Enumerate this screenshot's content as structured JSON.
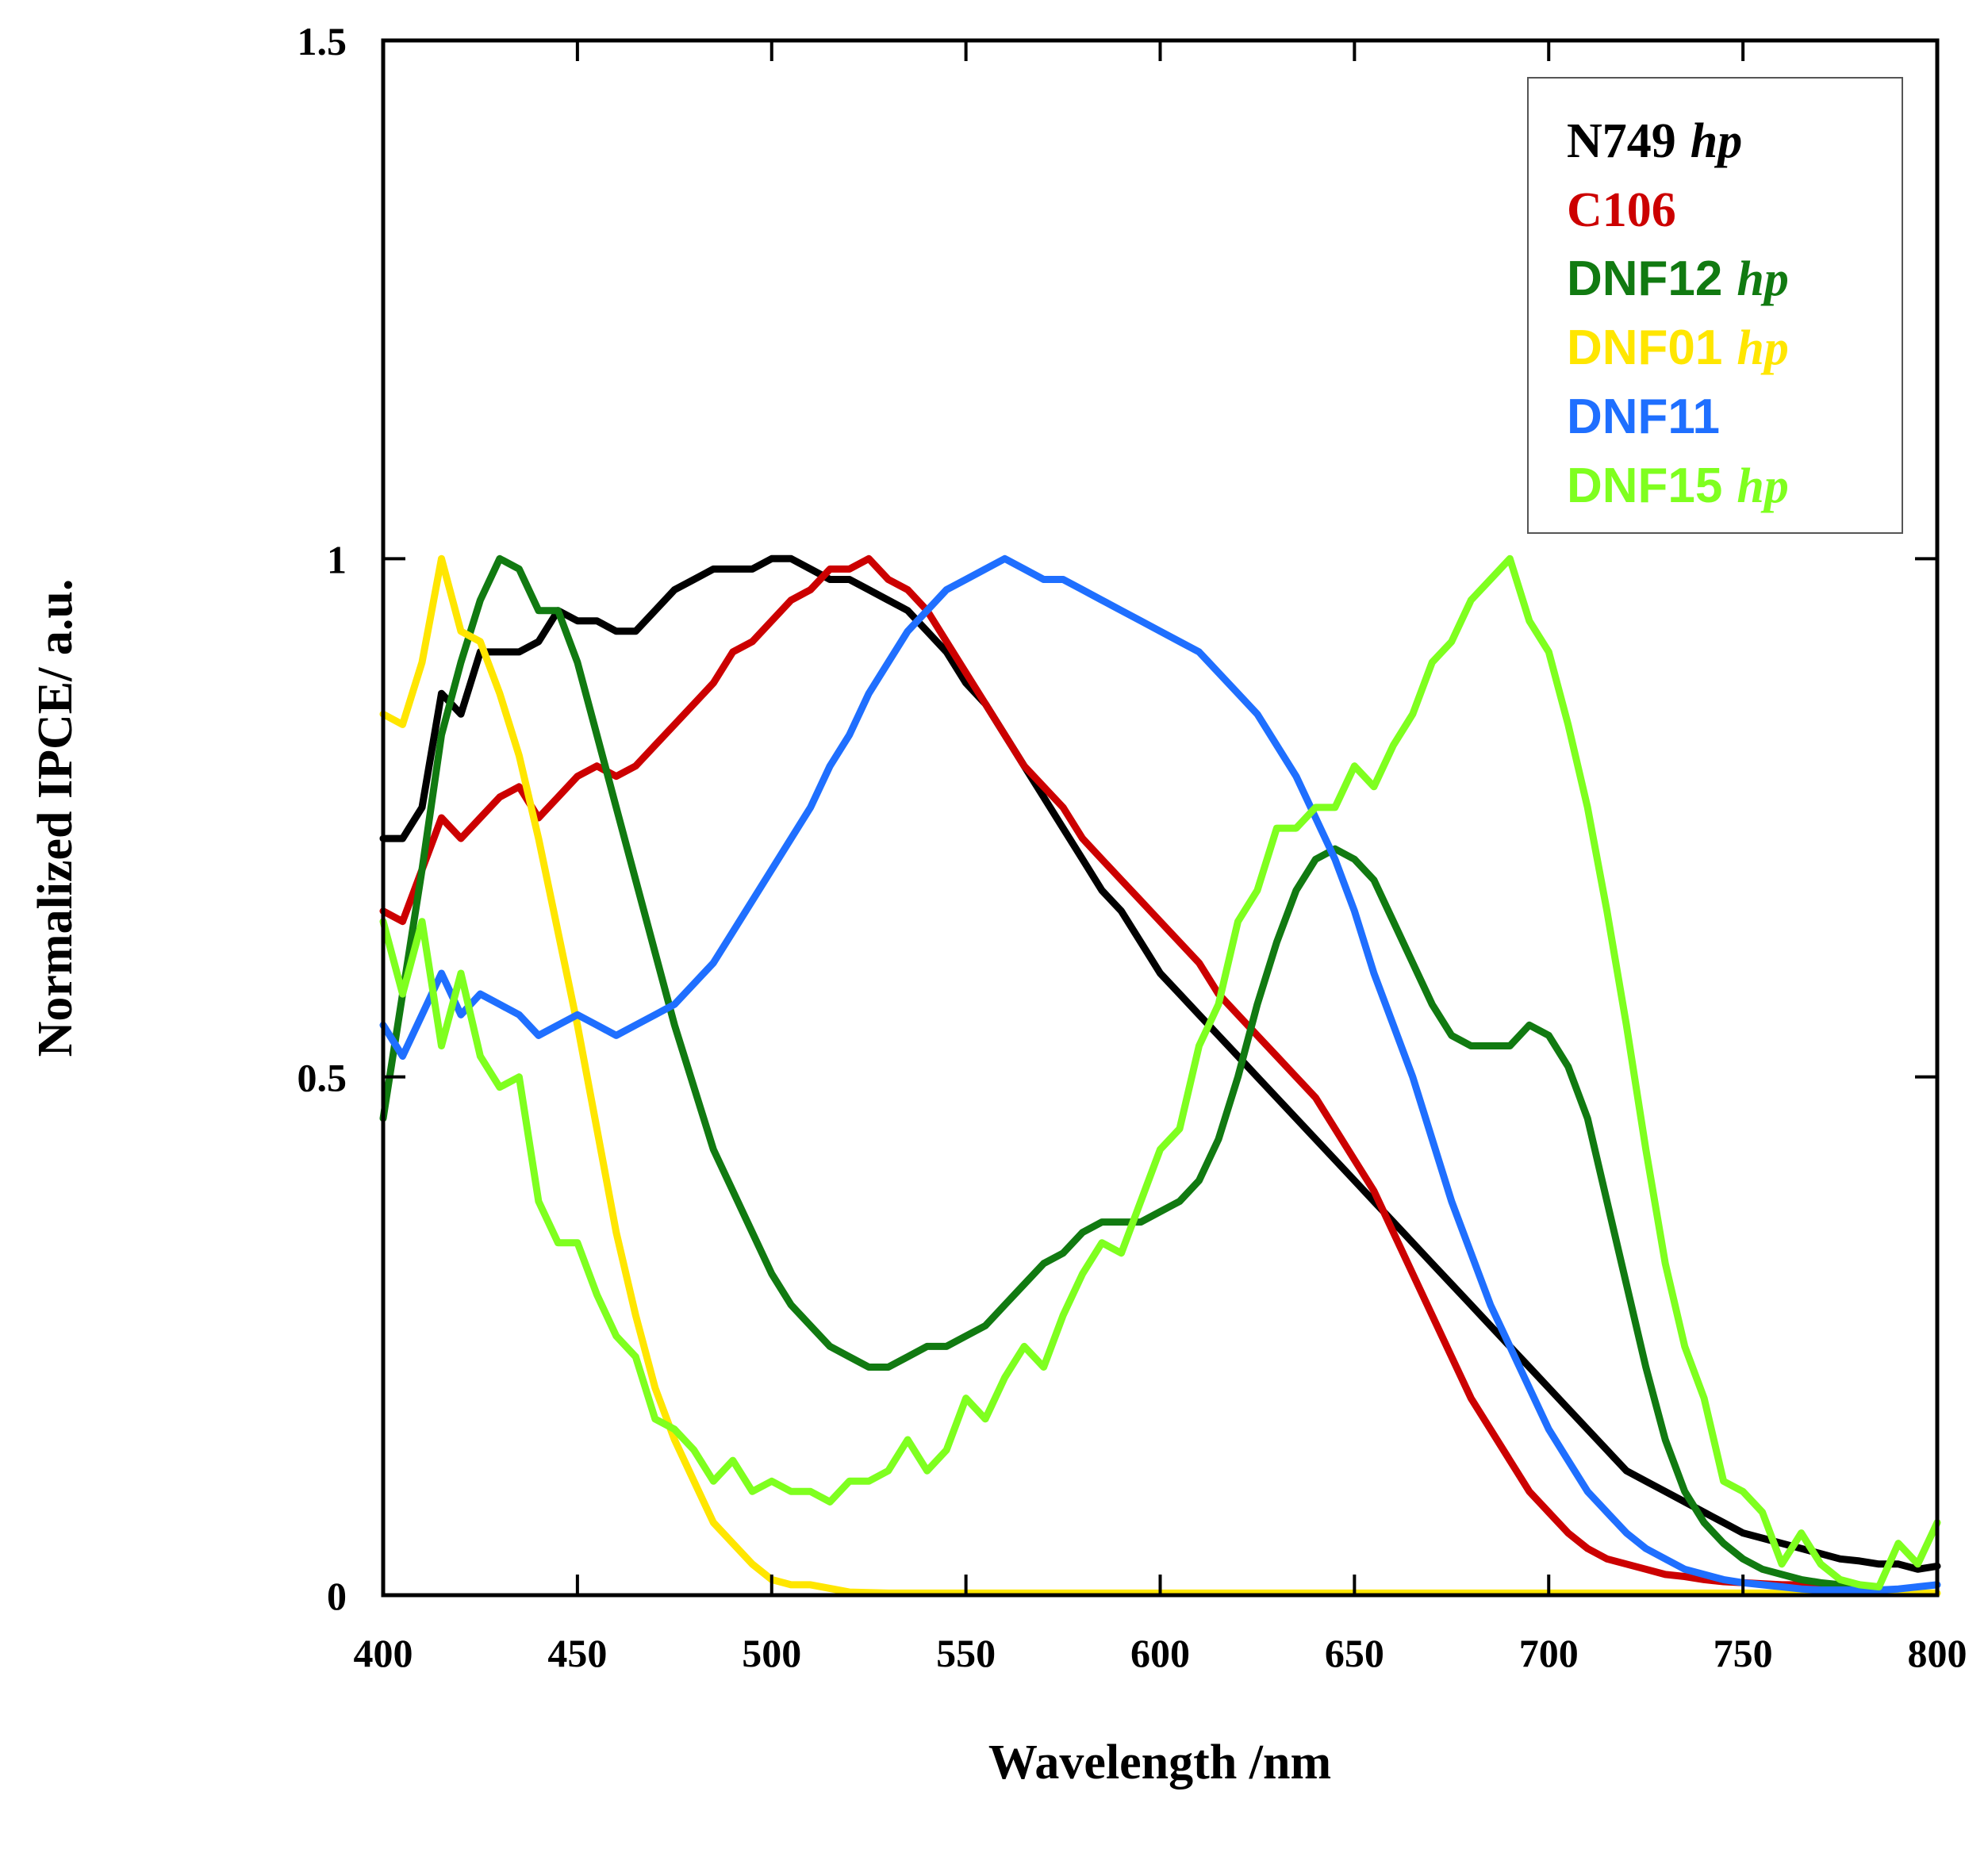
{
  "chart_data": {
    "type": "line",
    "title": "",
    "xlabel": "Wavelength /nm",
    "ylabel": "Normalized IPCE/ a.u.",
    "xlim": [
      400,
      800
    ],
    "ylim": [
      0,
      1.5
    ],
    "x_ticks": [
      "400",
      "450",
      "500",
      "550",
      "600",
      "650",
      "700",
      "750",
      "800"
    ],
    "y_ticks": [
      "0",
      "0.5",
      "1",
      "1.5"
    ],
    "grid": false,
    "legend_position": "top-right",
    "series": [
      {
        "name": "N749",
        "suffix": "hp",
        "color": "#000000",
        "x": [
          400,
          405,
          410,
          415,
          420,
          425,
          430,
          435,
          440,
          445,
          450,
          455,
          460,
          465,
          470,
          475,
          480,
          485,
          490,
          495,
          500,
          505,
          510,
          515,
          520,
          525,
          530,
          535,
          540,
          545,
          550,
          555,
          560,
          565,
          570,
          575,
          580,
          585,
          590,
          595,
          600,
          605,
          610,
          615,
          620,
          625,
          630,
          635,
          640,
          645,
          650,
          655,
          660,
          665,
          670,
          675,
          680,
          685,
          690,
          695,
          700,
          705,
          710,
          715,
          720,
          725,
          730,
          735,
          740,
          745,
          750,
          755,
          760,
          765,
          770,
          775,
          780,
          785,
          790,
          795,
          800
        ],
        "values": [
          0.73,
          0.73,
          0.76,
          0.87,
          0.85,
          0.91,
          0.91,
          0.91,
          0.92,
          0.95,
          0.94,
          0.94,
          0.93,
          0.93,
          0.95,
          0.97,
          0.98,
          0.99,
          0.99,
          0.99,
          1.0,
          1.0,
          0.99,
          0.98,
          0.98,
          0.97,
          0.96,
          0.95,
          0.93,
          0.91,
          0.88,
          0.86,
          0.83,
          0.8,
          0.77,
          0.74,
          0.71,
          0.68,
          0.66,
          0.63,
          0.6,
          0.58,
          0.56,
          0.54,
          0.52,
          0.5,
          0.48,
          0.46,
          0.44,
          0.42,
          0.4,
          0.38,
          0.36,
          0.34,
          0.32,
          0.3,
          0.28,
          0.26,
          0.24,
          0.22,
          0.2,
          0.18,
          0.16,
          0.14,
          0.12,
          0.11,
          0.1,
          0.09,
          0.08,
          0.07,
          0.06,
          0.055,
          0.05,
          0.045,
          0.04,
          0.035,
          0.033,
          0.03,
          0.03,
          0.025,
          0.028
        ]
      },
      {
        "name": "C106",
        "suffix": "",
        "color": "#cc0000",
        "x": [
          400,
          405,
          410,
          415,
          420,
          425,
          430,
          435,
          440,
          445,
          450,
          455,
          460,
          465,
          470,
          475,
          480,
          485,
          490,
          495,
          500,
          505,
          510,
          515,
          520,
          525,
          530,
          535,
          540,
          545,
          550,
          555,
          560,
          565,
          570,
          575,
          580,
          585,
          590,
          595,
          600,
          605,
          610,
          615,
          620,
          625,
          630,
          635,
          640,
          645,
          650,
          655,
          660,
          665,
          670,
          675,
          680,
          685,
          690,
          695,
          700,
          705,
          710,
          715,
          720,
          725,
          730,
          735,
          740,
          745,
          750,
          755,
          760,
          765,
          770,
          775,
          780
        ],
        "values": [
          0.66,
          0.65,
          0.7,
          0.75,
          0.73,
          0.75,
          0.77,
          0.78,
          0.75,
          0.77,
          0.79,
          0.8,
          0.79,
          0.8,
          0.82,
          0.84,
          0.86,
          0.88,
          0.91,
          0.92,
          0.94,
          0.96,
          0.97,
          0.99,
          0.99,
          1.0,
          0.98,
          0.97,
          0.95,
          0.92,
          0.89,
          0.86,
          0.83,
          0.8,
          0.78,
          0.76,
          0.73,
          0.71,
          0.69,
          0.67,
          0.65,
          0.63,
          0.61,
          0.58,
          0.56,
          0.54,
          0.52,
          0.5,
          0.48,
          0.45,
          0.42,
          0.39,
          0.35,
          0.31,
          0.27,
          0.23,
          0.19,
          0.16,
          0.13,
          0.1,
          0.08,
          0.06,
          0.045,
          0.035,
          0.03,
          0.025,
          0.02,
          0.018,
          0.015,
          0.013,
          0.012,
          0.011,
          0.01,
          0.01,
          0.01,
          0.01,
          0.01
        ]
      },
      {
        "name": "DNF12",
        "suffix": "hp",
        "color": "#117a11",
        "x": [
          400,
          405,
          410,
          415,
          420,
          425,
          430,
          435,
          440,
          445,
          450,
          455,
          460,
          465,
          470,
          475,
          480,
          485,
          490,
          495,
          500,
          505,
          510,
          515,
          520,
          525,
          530,
          535,
          540,
          545,
          550,
          555,
          560,
          565,
          570,
          575,
          580,
          585,
          590,
          595,
          600,
          605,
          610,
          615,
          620,
          625,
          630,
          635,
          640,
          645,
          650,
          655,
          660,
          665,
          670,
          675,
          680,
          685,
          690,
          695,
          700,
          705,
          710,
          715,
          720,
          725,
          730,
          735,
          740,
          745,
          750,
          755,
          760,
          765,
          770,
          775,
          780
        ],
        "values": [
          0.46,
          0.58,
          0.7,
          0.83,
          0.9,
          0.96,
          1.0,
          0.99,
          0.95,
          0.95,
          0.9,
          0.83,
          0.76,
          0.69,
          0.62,
          0.55,
          0.49,
          0.43,
          0.39,
          0.35,
          0.31,
          0.28,
          0.26,
          0.24,
          0.23,
          0.22,
          0.22,
          0.23,
          0.24,
          0.24,
          0.25,
          0.26,
          0.28,
          0.3,
          0.32,
          0.33,
          0.35,
          0.36,
          0.36,
          0.36,
          0.37,
          0.38,
          0.4,
          0.44,
          0.5,
          0.57,
          0.63,
          0.68,
          0.71,
          0.72,
          0.71,
          0.69,
          0.65,
          0.61,
          0.57,
          0.54,
          0.53,
          0.53,
          0.53,
          0.55,
          0.54,
          0.51,
          0.46,
          0.38,
          0.3,
          0.22,
          0.15,
          0.1,
          0.07,
          0.05,
          0.035,
          0.025,
          0.02,
          0.015,
          0.012,
          0.01,
          0.01
        ]
      },
      {
        "name": "DNF01",
        "suffix": "hp",
        "color": "#ffe600",
        "x": [
          400,
          405,
          410,
          415,
          420,
          425,
          430,
          435,
          440,
          445,
          450,
          455,
          460,
          465,
          470,
          475,
          480,
          485,
          490,
          495,
          500,
          505,
          510,
          520,
          530,
          550,
          570,
          600,
          650,
          700,
          750,
          800
        ],
        "values": [
          0.85,
          0.84,
          0.9,
          1.0,
          0.93,
          0.92,
          0.87,
          0.81,
          0.73,
          0.64,
          0.55,
          0.45,
          0.35,
          0.27,
          0.2,
          0.15,
          0.11,
          0.07,
          0.05,
          0.03,
          0.015,
          0.01,
          0.01,
          0.003,
          0.002,
          0.002,
          0.002,
          0.002,
          0.002,
          0.002,
          0.002,
          0.002
        ]
      },
      {
        "name": "DNF11",
        "suffix": "",
        "color": "#1f6fff",
        "x": [
          400,
          405,
          410,
          415,
          420,
          425,
          430,
          435,
          440,
          445,
          450,
          455,
          460,
          465,
          470,
          475,
          480,
          485,
          490,
          495,
          500,
          505,
          510,
          515,
          520,
          525,
          530,
          535,
          540,
          545,
          550,
          555,
          560,
          565,
          570,
          575,
          580,
          585,
          590,
          595,
          600,
          605,
          610,
          615,
          620,
          625,
          630,
          635,
          640,
          645,
          650,
          655,
          660,
          665,
          670,
          675,
          680,
          685,
          690,
          695,
          700,
          705,
          710,
          715,
          720,
          725,
          730,
          735,
          740,
          745,
          750,
          755,
          760,
          765,
          770,
          775,
          780,
          785,
          790,
          795,
          800
        ],
        "values": [
          0.55,
          0.52,
          0.56,
          0.6,
          0.56,
          0.58,
          0.57,
          0.56,
          0.54,
          0.55,
          0.56,
          0.55,
          0.54,
          0.55,
          0.56,
          0.57,
          0.59,
          0.61,
          0.64,
          0.67,
          0.7,
          0.73,
          0.76,
          0.8,
          0.83,
          0.87,
          0.9,
          0.93,
          0.95,
          0.97,
          0.98,
          0.99,
          1.0,
          0.99,
          0.98,
          0.98,
          0.97,
          0.96,
          0.95,
          0.94,
          0.93,
          0.92,
          0.91,
          0.89,
          0.87,
          0.85,
          0.82,
          0.79,
          0.75,
          0.71,
          0.66,
          0.6,
          0.55,
          0.5,
          0.44,
          0.38,
          0.33,
          0.28,
          0.24,
          0.2,
          0.16,
          0.13,
          0.1,
          0.08,
          0.06,
          0.045,
          0.035,
          0.025,
          0.02,
          0.015,
          0.012,
          0.01,
          0.008,
          0.006,
          0.005,
          0.005,
          0.005,
          0.005,
          0.006,
          0.008,
          0.01
        ]
      },
      {
        "name": "DNF15",
        "suffix": "hp",
        "color": "#7fff1f",
        "x": [
          400,
          405,
          410,
          415,
          420,
          425,
          430,
          435,
          440,
          445,
          450,
          455,
          460,
          465,
          470,
          475,
          480,
          485,
          490,
          495,
          500,
          505,
          510,
          515,
          520,
          525,
          530,
          535,
          540,
          545,
          550,
          555,
          560,
          565,
          570,
          575,
          580,
          585,
          590,
          595,
          600,
          605,
          610,
          615,
          620,
          625,
          630,
          635,
          640,
          645,
          650,
          655,
          660,
          665,
          670,
          675,
          680,
          685,
          690,
          695,
          700,
          705,
          710,
          715,
          720,
          725,
          730,
          735,
          740,
          745,
          750,
          755,
          760,
          765,
          770,
          775,
          780,
          785,
          790,
          795,
          800
        ],
        "values": [
          0.65,
          0.58,
          0.65,
          0.53,
          0.6,
          0.52,
          0.49,
          0.5,
          0.38,
          0.34,
          0.34,
          0.29,
          0.25,
          0.23,
          0.17,
          0.16,
          0.14,
          0.11,
          0.13,
          0.1,
          0.11,
          0.1,
          0.1,
          0.09,
          0.11,
          0.11,
          0.12,
          0.15,
          0.12,
          0.14,
          0.19,
          0.17,
          0.21,
          0.24,
          0.22,
          0.27,
          0.31,
          0.34,
          0.33,
          0.38,
          0.43,
          0.45,
          0.53,
          0.57,
          0.65,
          0.68,
          0.74,
          0.74,
          0.76,
          0.76,
          0.8,
          0.78,
          0.82,
          0.85,
          0.9,
          0.92,
          0.96,
          0.98,
          1.0,
          0.94,
          0.91,
          0.84,
          0.76,
          0.66,
          0.55,
          0.43,
          0.32,
          0.24,
          0.19,
          0.11,
          0.1,
          0.08,
          0.03,
          0.06,
          0.03,
          0.015,
          0.01,
          0.008,
          0.05,
          0.03,
          0.07
        ]
      }
    ]
  }
}
